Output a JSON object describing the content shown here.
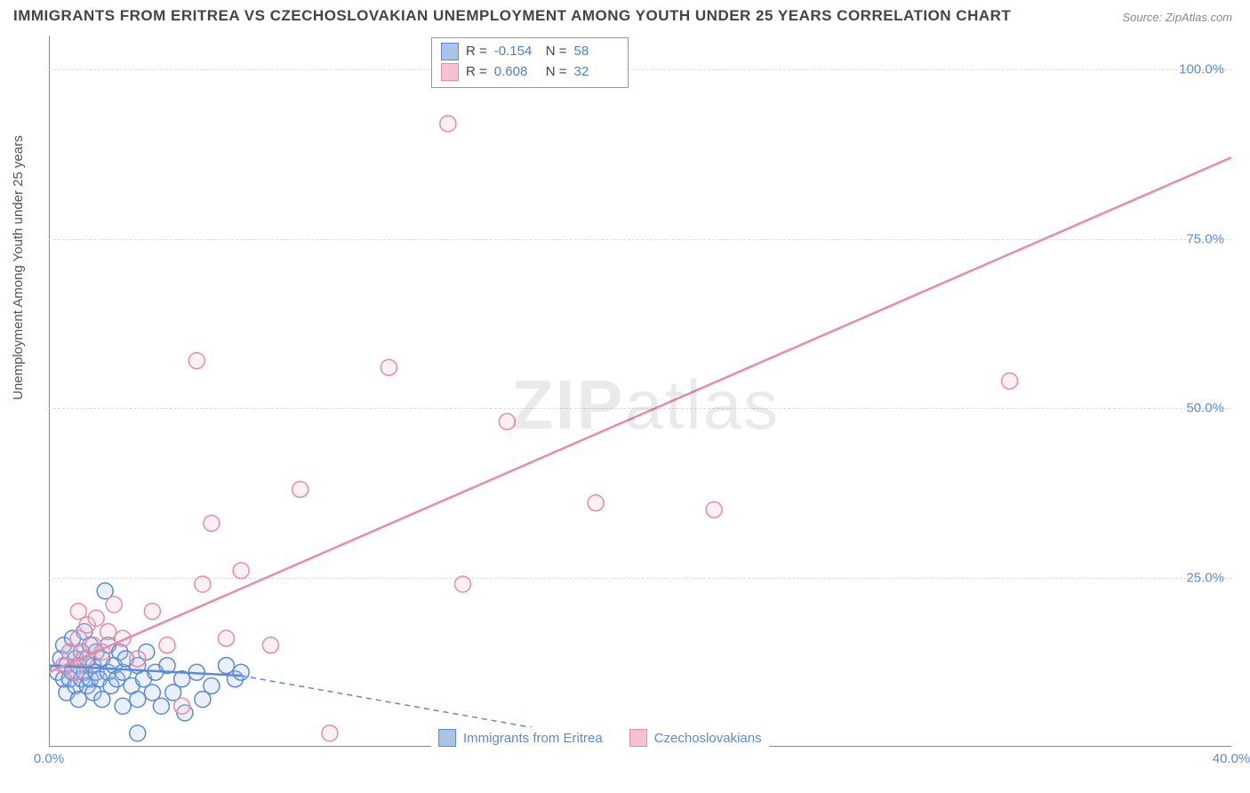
{
  "title": "IMMIGRANTS FROM ERITREA VS CZECHOSLOVAKIAN UNEMPLOYMENT AMONG YOUTH UNDER 25 YEARS CORRELATION CHART",
  "source": "Source: ZipAtlas.com",
  "ylabel": "Unemployment Among Youth under 25 years",
  "watermark_bold": "ZIP",
  "watermark_thin": "atlas",
  "chart": {
    "type": "scatter",
    "background_color": "#ffffff",
    "grid_color": "#dddddd",
    "axis_color": "#888888",
    "xlim": [
      0,
      40
    ],
    "ylim": [
      0,
      105
    ],
    "xtick_labels": [
      {
        "v": 0,
        "label": "0.0%"
      },
      {
        "v": 40,
        "label": "40.0%"
      }
    ],
    "ytick_labels": [
      {
        "v": 25,
        "label": "25.0%"
      },
      {
        "v": 50,
        "label": "50.0%"
      },
      {
        "v": 75,
        "label": "75.0%"
      },
      {
        "v": 100,
        "label": "100.0%"
      }
    ],
    "grid_y": [
      25,
      50,
      75,
      100
    ],
    "marker_radius": 9,
    "marker_stroke_width": 1.5,
    "marker_fill_opacity": 0.25,
    "line_width_solid": 2.5,
    "line_width_dashed": 1.5,
    "dash_pattern": "6,5",
    "series": [
      {
        "name": "Immigrants from Eritrea",
        "color_stroke": "#5b8bd4",
        "color_fill": "#aac4e8",
        "R": "-0.154",
        "N": "58",
        "trend_solid": {
          "x1": 0,
          "y1": 12,
          "x2": 6.5,
          "y2": 10.5
        },
        "trend_dashed": {
          "x1": 6.5,
          "y1": 10.5,
          "x2": 20,
          "y2": 0
        },
        "points_xy": [
          [
            0.3,
            11
          ],
          [
            0.4,
            13
          ],
          [
            0.5,
            10
          ],
          [
            0.5,
            15
          ],
          [
            0.6,
            8
          ],
          [
            0.6,
            12
          ],
          [
            0.7,
            14
          ],
          [
            0.7,
            10
          ],
          [
            0.8,
            11
          ],
          [
            0.8,
            16
          ],
          [
            0.9,
            9
          ],
          [
            0.9,
            13
          ],
          [
            1.0,
            12
          ],
          [
            1.0,
            7
          ],
          [
            1.1,
            14
          ],
          [
            1.1,
            10
          ],
          [
            1.2,
            11
          ],
          [
            1.2,
            17
          ],
          [
            1.3,
            9
          ],
          [
            1.3,
            13
          ],
          [
            1.4,
            15
          ],
          [
            1.4,
            10
          ],
          [
            1.5,
            12
          ],
          [
            1.5,
            8
          ],
          [
            1.6,
            11
          ],
          [
            1.6,
            14
          ],
          [
            1.7,
            10
          ],
          [
            1.8,
            13
          ],
          [
            1.8,
            7
          ],
          [
            1.9,
            23
          ],
          [
            2.0,
            11
          ],
          [
            2.0,
            15
          ],
          [
            2.1,
            9
          ],
          [
            2.2,
            12
          ],
          [
            2.3,
            10
          ],
          [
            2.4,
            14
          ],
          [
            2.5,
            11
          ],
          [
            2.5,
            6
          ],
          [
            2.6,
            13
          ],
          [
            2.8,
            9
          ],
          [
            3.0,
            12
          ],
          [
            3.0,
            7
          ],
          [
            3.0,
            2
          ],
          [
            3.2,
            10
          ],
          [
            3.3,
            14
          ],
          [
            3.5,
            8
          ],
          [
            3.6,
            11
          ],
          [
            3.8,
            6
          ],
          [
            4.0,
            12
          ],
          [
            4.2,
            8
          ],
          [
            4.5,
            10
          ],
          [
            4.6,
            5
          ],
          [
            5.0,
            11
          ],
          [
            5.2,
            7
          ],
          [
            5.5,
            9
          ],
          [
            6.0,
            12
          ],
          [
            6.3,
            10
          ],
          [
            6.5,
            11
          ]
        ]
      },
      {
        "name": "Czechoslakians",
        "display_name": "Czechoslovakians",
        "color_stroke": "#e88ba8",
        "color_fill": "#f4c2d1",
        "R": "0.608",
        "N": "32",
        "trend_solid": {
          "x1": 0,
          "y1": 11,
          "x2": 40,
          "y2": 87
        },
        "trend_dashed": null,
        "points_xy": [
          [
            0.5,
            12
          ],
          [
            0.7,
            14
          ],
          [
            0.9,
            11
          ],
          [
            1.0,
            16
          ],
          [
            1.0,
            20
          ],
          [
            1.2,
            13
          ],
          [
            1.3,
            18
          ],
          [
            1.5,
            15
          ],
          [
            1.6,
            19
          ],
          [
            1.8,
            14
          ],
          [
            2.0,
            17
          ],
          [
            2.2,
            21
          ],
          [
            2.5,
            16
          ],
          [
            3.0,
            13
          ],
          [
            3.5,
            20
          ],
          [
            4.0,
            15
          ],
          [
            4.5,
            6
          ],
          [
            5.0,
            57
          ],
          [
            5.2,
            24
          ],
          [
            5.5,
            33
          ],
          [
            6.0,
            16
          ],
          [
            6.5,
            26
          ],
          [
            7.5,
            15
          ],
          [
            8.5,
            38
          ],
          [
            9.5,
            2
          ],
          [
            11.5,
            56
          ],
          [
            13.5,
            92
          ],
          [
            14.0,
            24
          ],
          [
            15.5,
            48
          ],
          [
            18.5,
            36
          ],
          [
            22.5,
            35
          ],
          [
            32.5,
            54
          ]
        ]
      }
    ]
  },
  "stats_labels": {
    "R": "R =",
    "N": "N ="
  },
  "bottom_legend": {
    "series1": "Immigrants from Eritrea",
    "series2": "Czechoslovakians"
  }
}
